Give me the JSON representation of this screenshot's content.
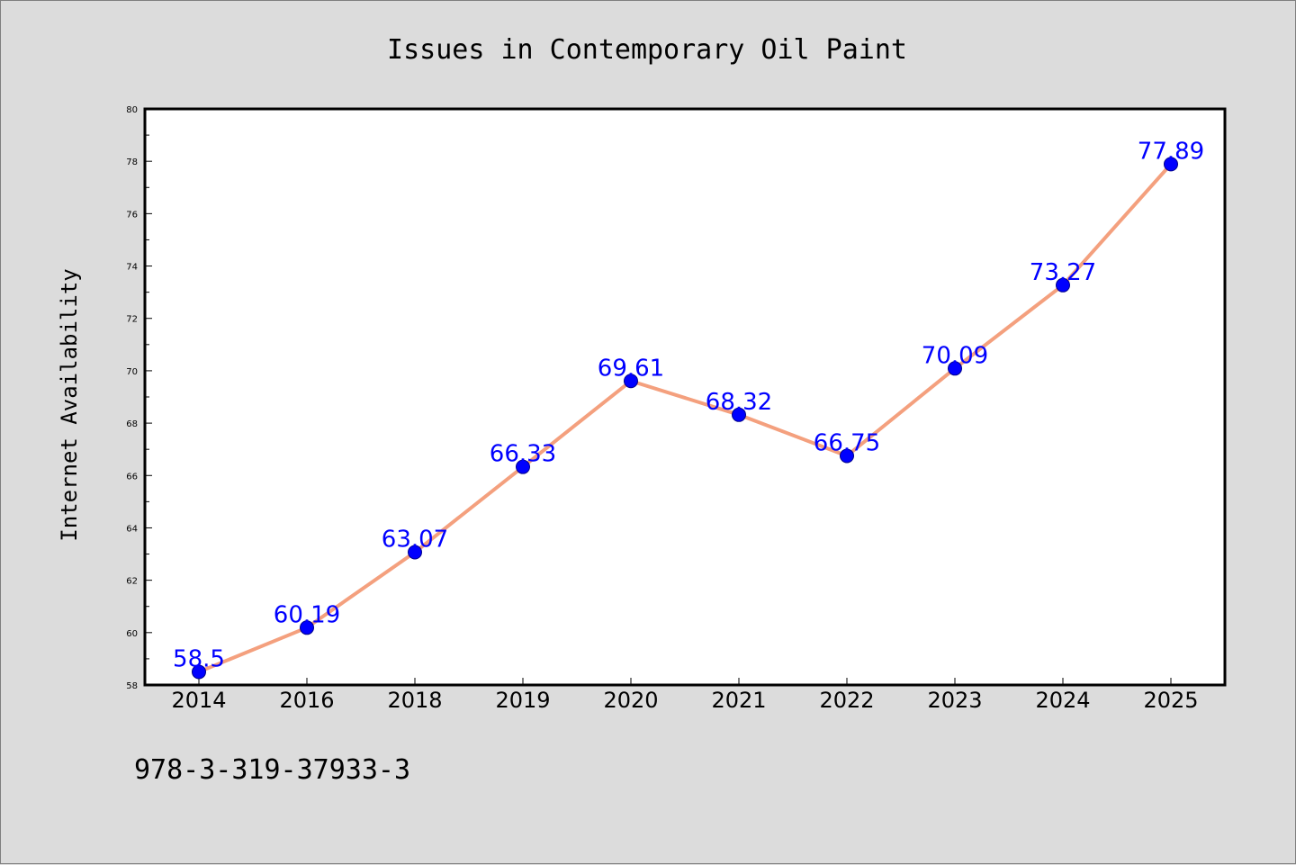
{
  "chart_data": {
    "type": "line",
    "title": "Issues in Contemporary Oil Paint",
    "xlabel": "",
    "ylabel": "Internet Availability",
    "categories": [
      "2014",
      "2016",
      "2018",
      "2019",
      "2020",
      "2021",
      "2022",
      "2023",
      "2024",
      "2025"
    ],
    "series": [
      {
        "values": [
          58.5,
          60.19,
          63.07,
          66.33,
          69.61,
          68.32,
          66.75,
          70.09,
          73.27,
          77.89
        ],
        "data_labels": [
          "58.5",
          "60.19",
          "63.07",
          "66.33",
          "69.61",
          "68.32",
          "66.75",
          "70.09",
          "73.27",
          "77.89"
        ]
      }
    ],
    "ylim": [
      58,
      80
    ],
    "yticks": [
      58,
      60,
      62,
      64,
      66,
      68,
      70,
      72,
      74,
      76,
      78,
      80
    ],
    "grid": false,
    "legend": "none",
    "colors": {
      "line": "#f4a07e",
      "marker": "#0000ff",
      "marker_edge": "#00008b",
      "data_label": "#0000ff",
      "plot_background": "#ffffff",
      "figure_background": "#dcdcdc"
    }
  },
  "footnote": "978-3-319-37933-3"
}
